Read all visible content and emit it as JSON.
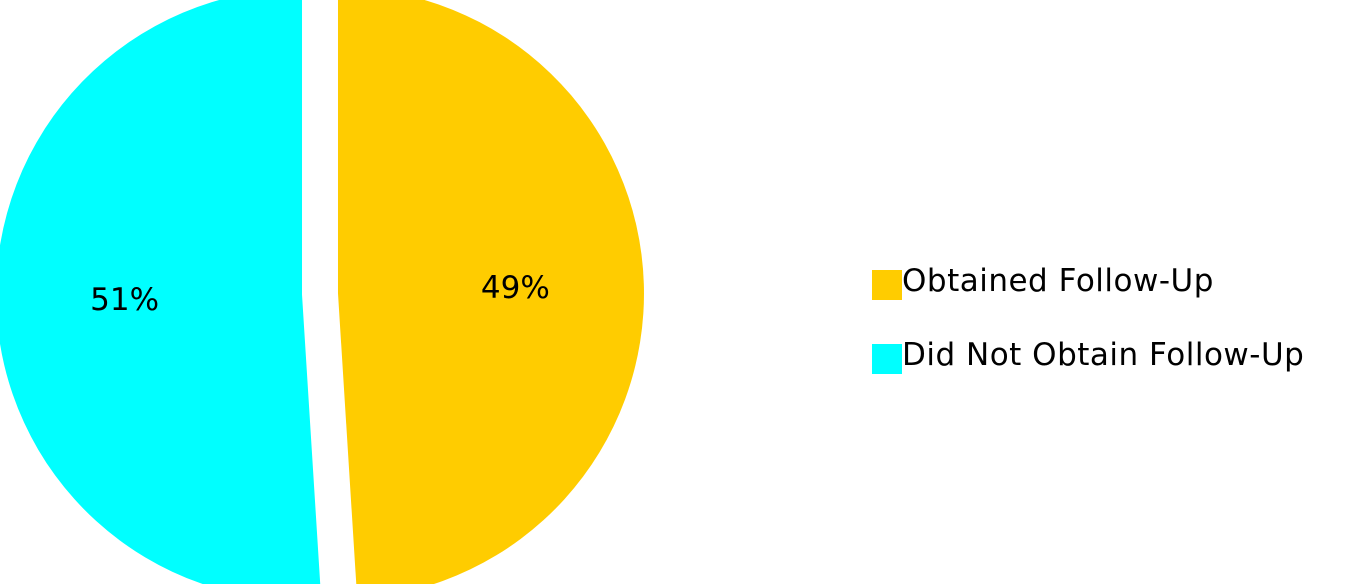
{
  "chart_data": {
    "type": "pie",
    "title": "",
    "slices": [
      {
        "label": "Obtained Follow-Up",
        "value": 49,
        "display": "49%",
        "color": "#FFCC00"
      },
      {
        "label": "Did Not Obtain Follow-Up",
        "value": 51,
        "display": "51%",
        "color": "#00FFFF"
      }
    ],
    "legend_position": "right",
    "exploded": true
  }
}
